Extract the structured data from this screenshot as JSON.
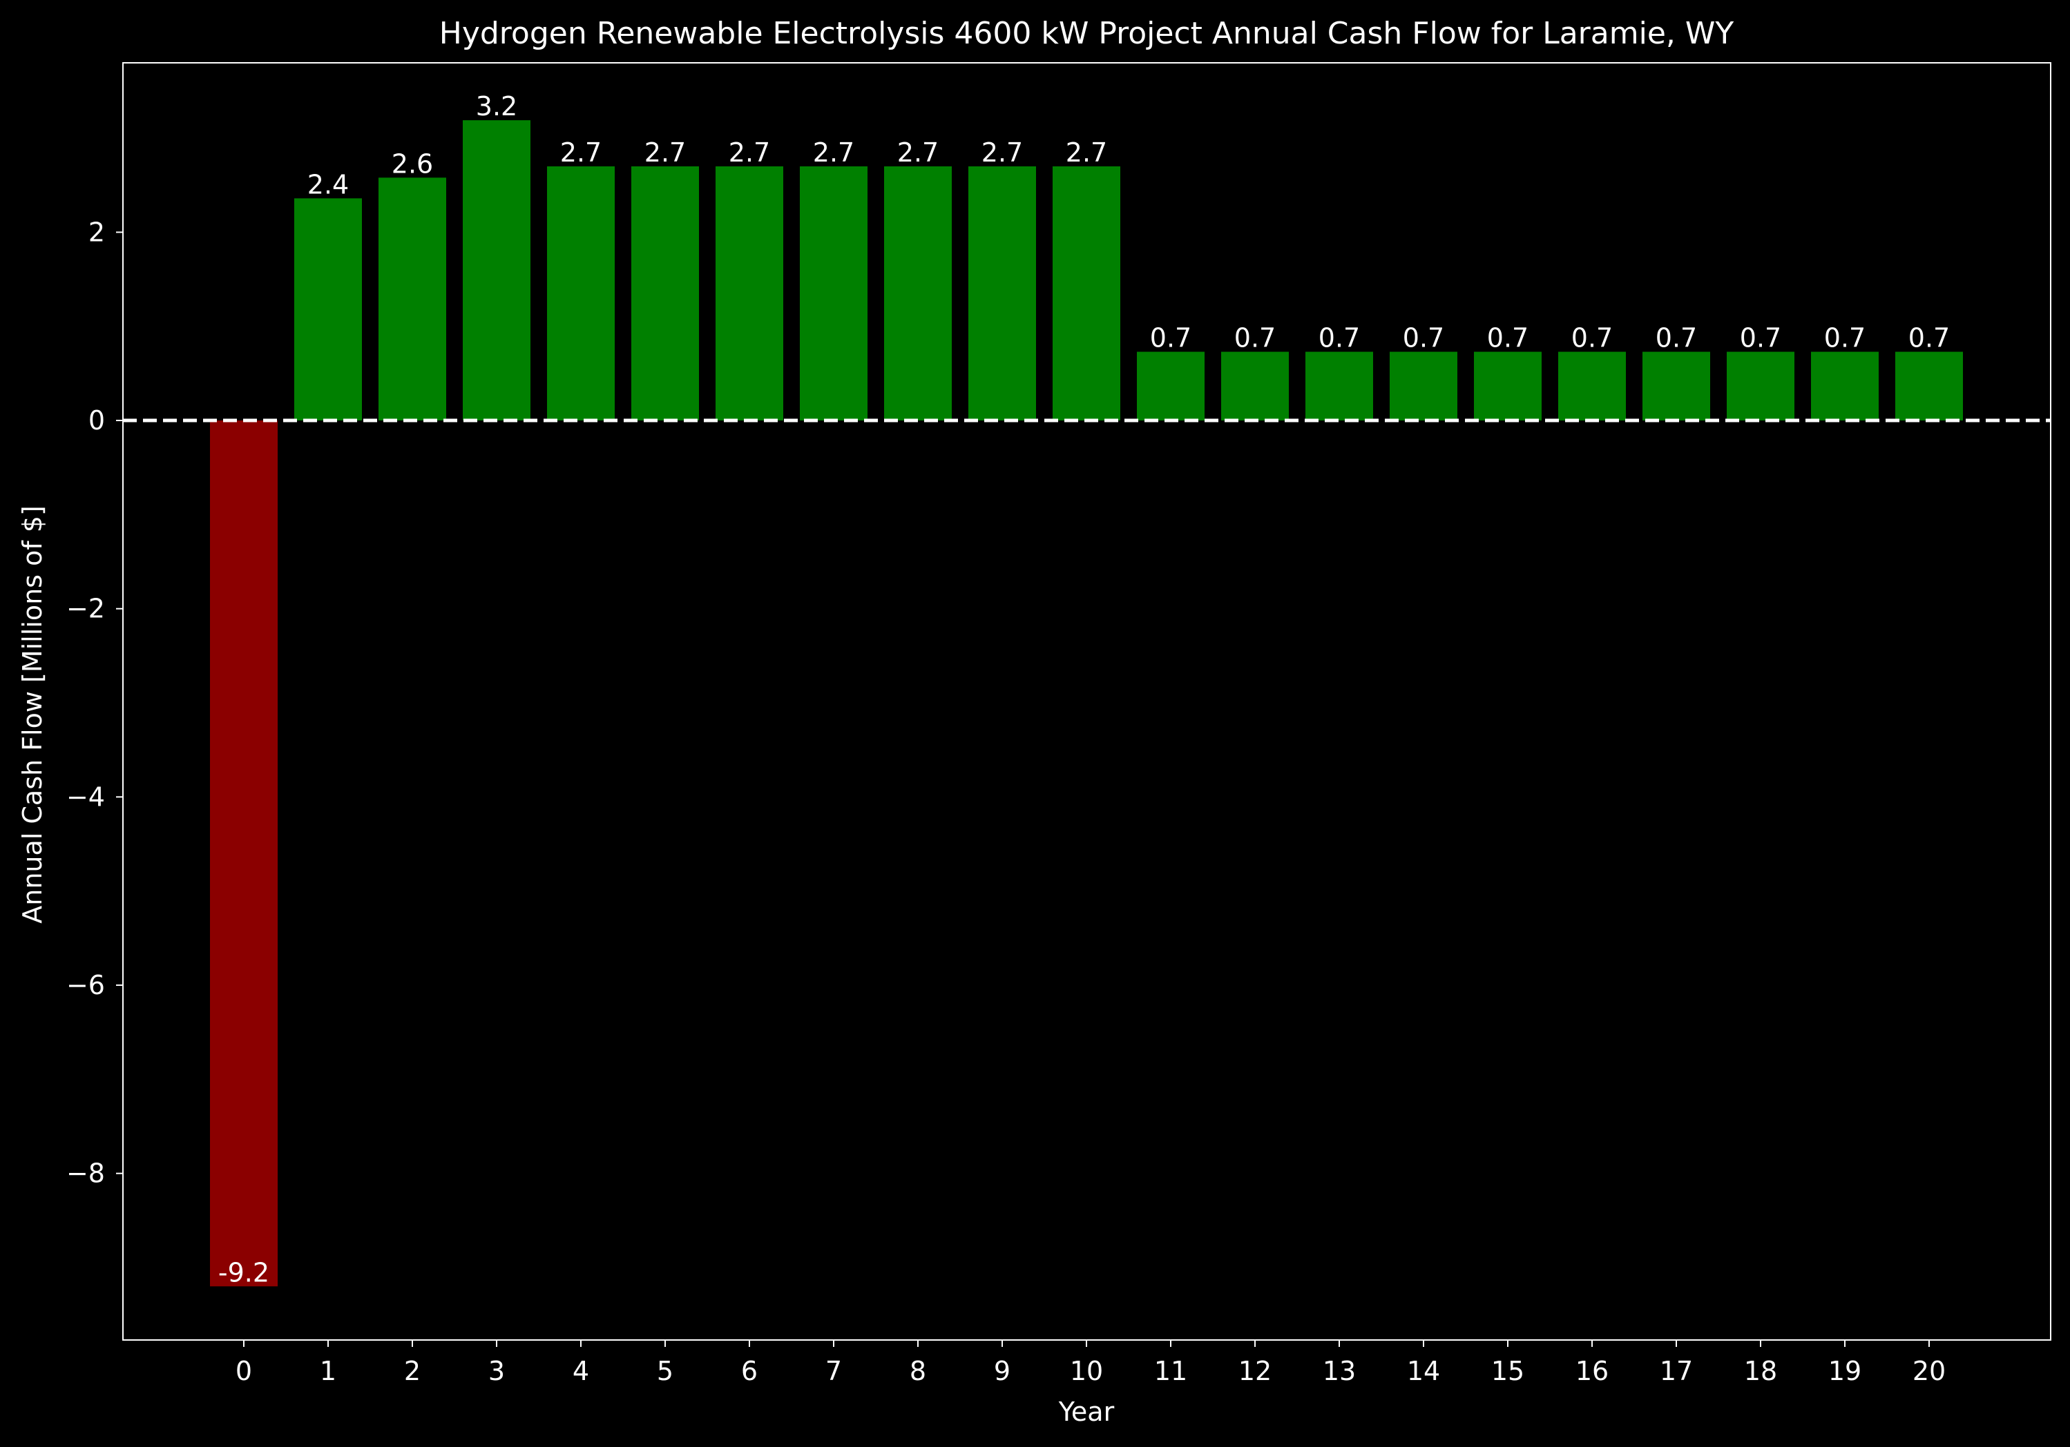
{
  "chart_data": {
    "type": "bar",
    "title": "Hydrogen Renewable Electrolysis 4600 kW Project Annual Cash Flow for Laramie, WY",
    "xlabel": "Year",
    "ylabel": "Annual Cash Flow [Millions of $]",
    "categories": [
      "0",
      "1",
      "2",
      "3",
      "4",
      "5",
      "6",
      "7",
      "8",
      "9",
      "10",
      "11",
      "12",
      "13",
      "14",
      "15",
      "16",
      "17",
      "18",
      "19",
      "20"
    ],
    "values": [
      -9.2,
      2.36,
      2.58,
      3.19,
      2.7,
      2.7,
      2.7,
      2.7,
      2.7,
      2.7,
      2.7,
      0.73,
      0.73,
      0.73,
      0.73,
      0.73,
      0.73,
      0.73,
      0.73,
      0.73,
      0.73
    ],
    "value_labels": [
      "-9.2",
      "2.4",
      "2.6",
      "3.2",
      "2.7",
      "2.7",
      "2.7",
      "2.7",
      "2.7",
      "2.7",
      "2.7",
      "0.7",
      "0.7",
      "0.7",
      "0.7",
      "0.7",
      "0.7",
      "0.7",
      "0.7",
      "0.7",
      "0.7"
    ],
    "ylim": [
      -9.77,
      3.8
    ],
    "yticks": [
      2,
      0,
      -2,
      -4,
      -6,
      -8
    ],
    "ytick_labels": [
      "2",
      "0",
      "−2",
      "−4",
      "−6",
      "−8"
    ],
    "reference_line": {
      "y": 0,
      "style": "dashed",
      "color": "#ffffff"
    },
    "colors": {
      "positive": "#008000",
      "negative": "#8b0000",
      "background": "#000000",
      "foreground": "#ffffff"
    },
    "grid": false,
    "legend": "none"
  }
}
